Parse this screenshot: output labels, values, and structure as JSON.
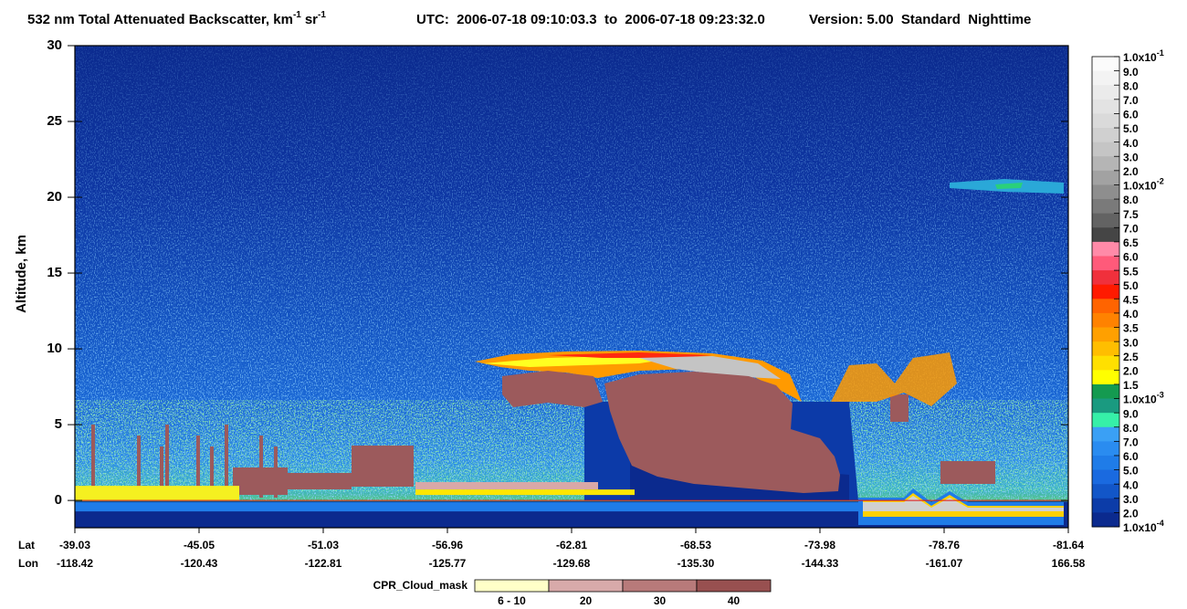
{
  "chart_data": {
    "type": "heatmap",
    "title": {
      "text": "532 nm Total Attenuated Backscatter, km",
      "exp_1": "-1",
      "unit_2": "sr",
      "exp_2": "-1",
      "utc": "UTC:  2006-07-18 09:10:03.3  to  2006-07-18 09:23:32.0",
      "version": "Version: 5.00  Standard  Nighttime"
    },
    "y_label": "Altitude, km",
    "ylim": [
      -1.8,
      30
    ],
    "yticks": [
      0,
      5,
      10,
      15,
      20,
      25,
      30
    ],
    "x_rows": [
      {
        "name": "Lat",
        "labels": [
          "-39.03",
          "-45.05",
          "-51.03",
          "-56.96",
          "-62.81",
          "-68.53",
          "-73.98",
          "-78.76",
          "-81.64"
        ]
      },
      {
        "name": "Lon",
        "labels": [
          "-118.42",
          "-120.43",
          "-122.81",
          "-125.77",
          "-129.68",
          "-135.30",
          "-144.33",
          "-161.07",
          "166.58"
        ]
      }
    ],
    "colorbar": {
      "labels": [
        {
          "base": "1.0x10",
          "exp": "-1"
        },
        "9.0",
        "8.0",
        "7.0",
        "6.0",
        "5.0",
        "4.0",
        "3.0",
        "2.0",
        {
          "base": "1.0x10",
          "exp": "-2"
        },
        "8.0",
        "7.5",
        "7.0",
        "6.5",
        "6.0",
        "5.5",
        "5.0",
        "4.5",
        "4.0",
        "3.5",
        "3.0",
        "2.5",
        "2.0",
        "1.5",
        {
          "base": "1.0x10",
          "exp": "-3"
        },
        "9.0",
        "8.0",
        "7.0",
        "6.0",
        "5.0",
        "4.0",
        "3.0",
        "2.0",
        {
          "base": "1.0x10",
          "exp": "-4"
        }
      ],
      "colors": [
        "#fbfbfb",
        "#f3f3f3",
        "#ebebeb",
        "#e3e3e3",
        "#dadada",
        "#d0d0d0",
        "#c5c5c5",
        "#b5b5b5",
        "#a2a2a2",
        "#8e8e8e",
        "#7a7a7a",
        "#636363",
        "#454545",
        "#ff8aa8",
        "#ff5a7a",
        "#f0303c",
        "#ff1a00",
        "#ff6400",
        "#ff8200",
        "#ffa000",
        "#ffbe00",
        "#ffe000",
        "#ffff00",
        "#149a50",
        "#1a9a80",
        "#36f0a8",
        "#3aa0f5",
        "#2a8cf0",
        "#1f7ce8",
        "#1a6ae0",
        "#1256c8",
        "#0c3ca8",
        "#0b2a8e"
      ]
    },
    "cloud_mask_legend": {
      "title": "CPR_Cloud_mask",
      "labels": [
        "6 - 10",
        "20",
        "30",
        "40"
      ],
      "colors": [
        "#ffffc8",
        "#d8aaaa",
        "#b87a7a",
        "#985050"
      ]
    }
  }
}
